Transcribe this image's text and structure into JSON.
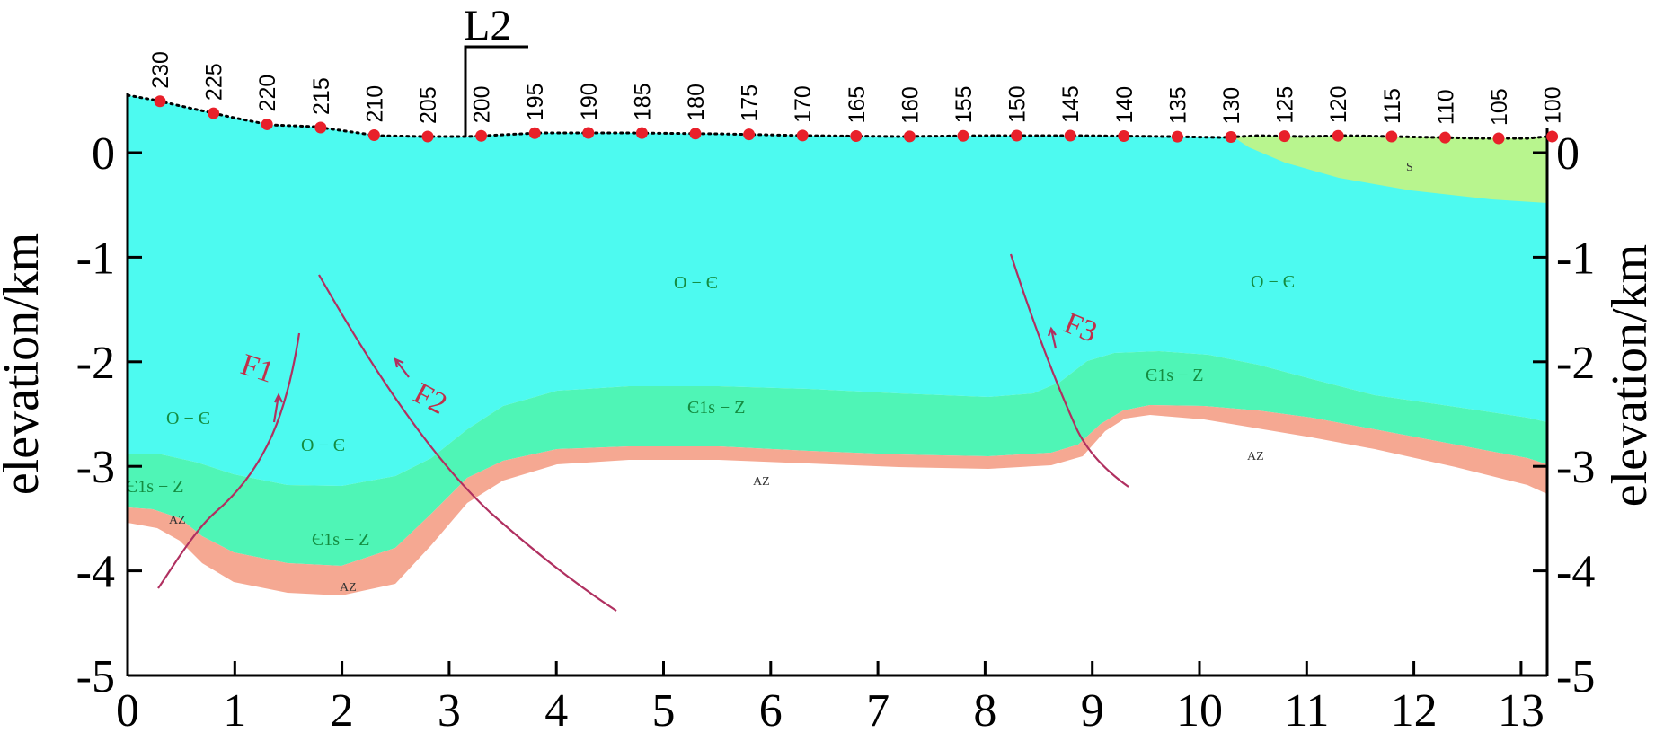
{
  "axes": {
    "left_label": "elevation/km",
    "right_label": "elevation/km",
    "x_ticks": [
      "0",
      "1",
      "2",
      "3",
      "4",
      "5",
      "6",
      "7",
      "8",
      "9",
      "10",
      "11",
      "12",
      "13"
    ],
    "y_ticks": [
      "0",
      "-1",
      "-2",
      "-3",
      "-4",
      "-5"
    ]
  },
  "profile": {
    "name": "L2",
    "stations": [
      "230",
      "225",
      "220",
      "215",
      "210",
      "205",
      "200",
      "195",
      "190",
      "185",
      "180",
      "175",
      "170",
      "165",
      "160",
      "155",
      "150",
      "145",
      "140",
      "135",
      "130",
      "125",
      "120",
      "115",
      "110",
      "105",
      "100"
    ]
  },
  "faults": [
    "F1",
    "F2",
    "F3"
  ],
  "units": {
    "upper": "O − Є",
    "middle": "Є1s − Z",
    "basement": "AZ",
    "silurian": "S"
  },
  "colors": {
    "upper_unit": "#4dfaf0",
    "middle_unit": "#4ff5b6",
    "basement": "#f5a892",
    "silurian": "#b8f58e",
    "fault_line": "#b03060",
    "station_marker": "#e8202a"
  }
}
